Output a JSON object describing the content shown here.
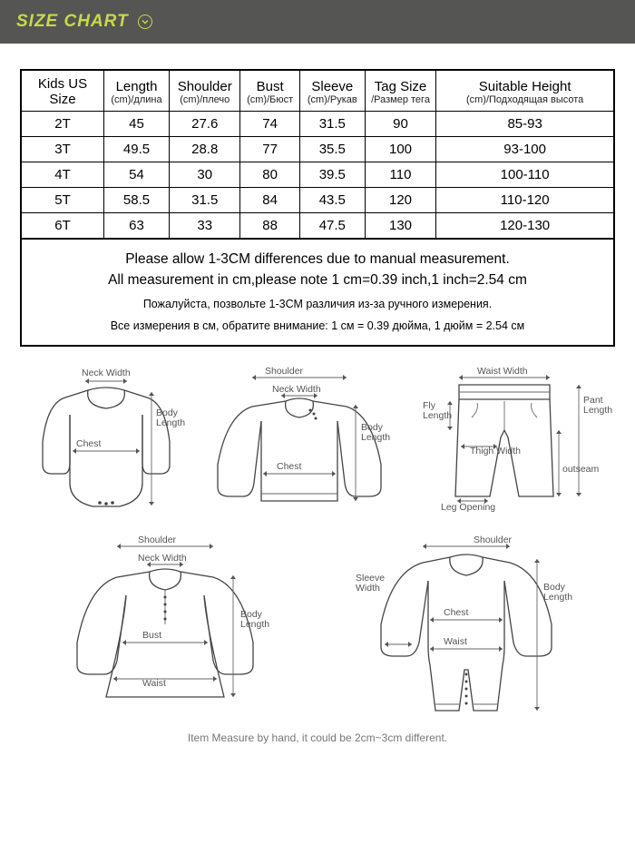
{
  "banner": {
    "title": "SIZE CHART"
  },
  "table": {
    "columns": [
      {
        "main": "Kids US Size",
        "sub": ""
      },
      {
        "main": "Length",
        "sub": "(cm)/длина"
      },
      {
        "main": "Shoulder",
        "sub": "(cm)/плечо"
      },
      {
        "main": "Bust",
        "sub": "(cm)/Бюст"
      },
      {
        "main": "Sleeve",
        "sub": "(cm)/Рукав"
      },
      {
        "main": "Tag Size",
        "sub": "/Размер тега"
      },
      {
        "main": "Suitable Height",
        "sub": "(cm)/Подходящая высота"
      }
    ],
    "rows": [
      [
        "2T",
        "45",
        "27.6",
        "74",
        "31.5",
        "90",
        "85-93"
      ],
      [
        "3T",
        "49.5",
        "28.8",
        "77",
        "35.5",
        "100",
        "93-100"
      ],
      [
        "4T",
        "54",
        "30",
        "80",
        "39.5",
        "110",
        "100-110"
      ],
      [
        "5T",
        "58.5",
        "31.5",
        "84",
        "43.5",
        "120",
        "110-120"
      ],
      [
        "6T",
        "63",
        "33",
        "88",
        "47.5",
        "130",
        "120-130"
      ]
    ],
    "col_widths": [
      "14%",
      "11%",
      "12%",
      "10%",
      "11%",
      "12%",
      "30%"
    ]
  },
  "notes": {
    "en1": "Please allow 1-3CM differences due to manual measurement.",
    "en2": "All measurement in cm,please note 1 cm=0.39 inch,1 inch=2.54 cm",
    "ru1": "Пожалуйста, позвольте 1-3СМ различия из-за ручного измерения.",
    "ru2": "Все измерения в см, обратите внимание: 1 см = 0.39 дюйма, 1 дюйм = 2.54 см"
  },
  "diagram_labels": {
    "neck_width": "Neck Width",
    "chest": "Chest",
    "body_length": "Body\nLength",
    "shoulder": "Shoulder",
    "waist_width": "Waist Width",
    "fly_length": "Fly\nLength",
    "thigh_width": "Thigh Width",
    "leg_opening": "Leg Opening",
    "pant_length": "Pant\nLength",
    "outseam": "outseam",
    "bust": "Bust",
    "waist": "Waist",
    "sleeve_width": "Sleeve\nWidth"
  },
  "footer": "Item Measure by hand, it could be 2cm~3cm different.",
  "colors": {
    "banner_bg": "#555554",
    "banner_text": "#c9d94a",
    "border": "#000000",
    "diag_stroke": "#444444",
    "diag_text": "#555555"
  }
}
